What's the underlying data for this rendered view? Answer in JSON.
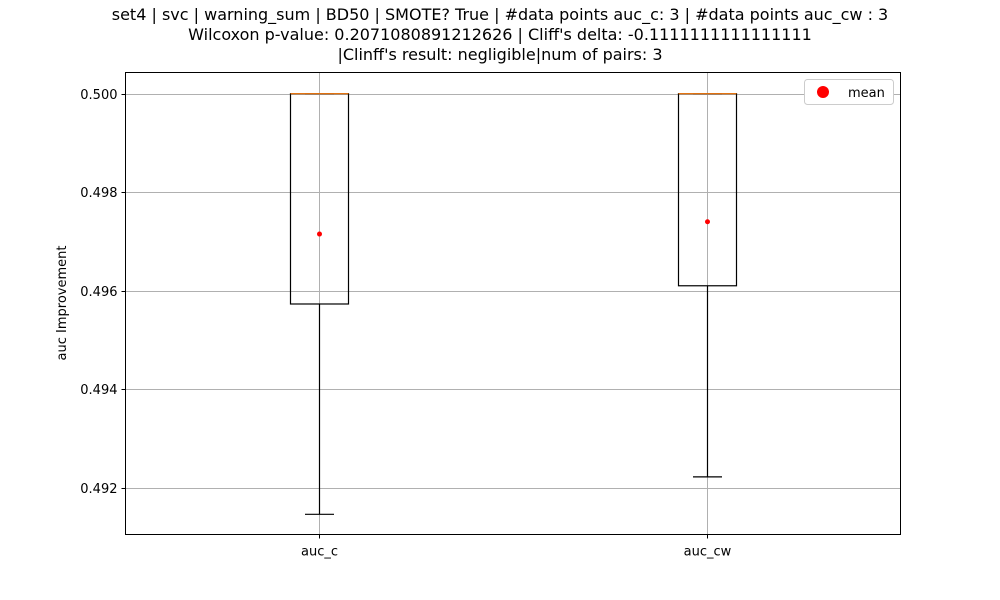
{
  "chart_data": {
    "type": "box",
    "title_lines": [
      "set4 | svc | warning_sum | BD50 | SMOTE? True | #data points auc_c: 3 | #data points auc_cw : 3",
      "Wilcoxon p-value: 0.2071080891212626 | Cliff's delta: -0.1111111111111111",
      "|Clinff's result: negligible|num of pairs: 3"
    ],
    "xlabel": "",
    "ylabel": "auc Improvement",
    "categories": [
      "auc_c",
      "auc_cw"
    ],
    "ylim": [
      0.49105,
      0.50043
    ],
    "yticks": [
      0.492,
      0.494,
      0.496,
      0.498,
      0.5
    ],
    "ytick_labels": [
      "0.492",
      "0.494",
      "0.496",
      "0.498",
      "0.500"
    ],
    "grid": true,
    "boxes": [
      {
        "name": "auc_c",
        "whisker_low": 0.49146,
        "q1": 0.49573,
        "median": 0.5,
        "q3": 0.5,
        "whisker_high": 0.5,
        "mean": 0.49715
      },
      {
        "name": "auc_cw",
        "whisker_low": 0.49222,
        "q1": 0.4961,
        "median": 0.5,
        "q3": 0.5,
        "whisker_high": 0.5,
        "mean": 0.4974
      }
    ],
    "legend": {
      "placement": "top-right",
      "entries": [
        {
          "label": "mean",
          "color": "#ff0000"
        }
      ]
    },
    "colors": {
      "box": "#000000",
      "median": "#ff7f0e",
      "mean": "#ff0000",
      "grid": "#b0b0b0"
    }
  }
}
